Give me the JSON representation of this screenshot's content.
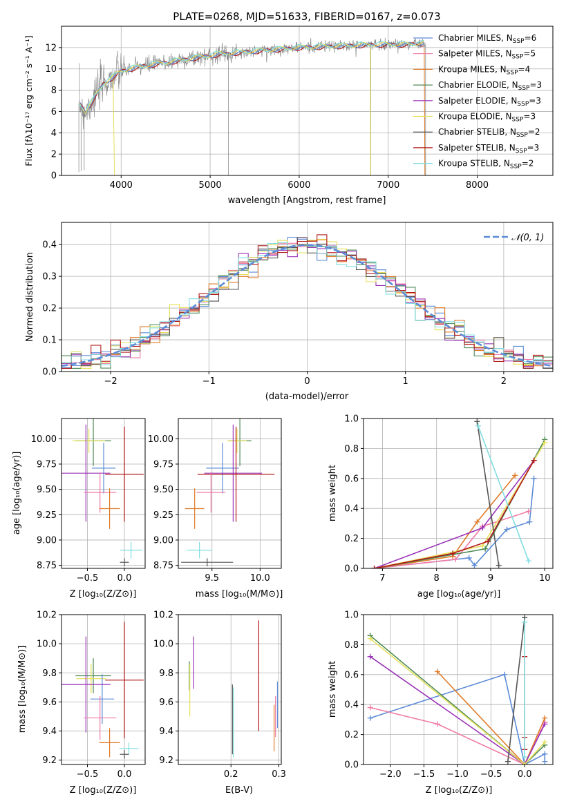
{
  "figure_title": "PLATE=0268, MJD=51633, FIBERID=0167, z=0.073",
  "colors": {
    "chabrier_miles": "#5b8bd6",
    "salpeter_miles": "#f07aa6",
    "kroupa_miles": "#e07b28",
    "chabrier_elodie": "#4f8a55",
    "salpeter_elodie": "#9a32b8",
    "kroupa_elodie": "#e6e05a",
    "chabrier_stelib": "#555555",
    "salpeter_stelib": "#b21818",
    "kroupa_stelib": "#7fdde0",
    "data": "#8a8a8a",
    "normal": "#5b8bd6"
  },
  "chart_data": [
    {
      "type": "line",
      "id": "spectrum",
      "title": "PLATE=0268, MJD=51633, FIBERID=0167, z=0.073",
      "xlabel": "wavelength [Angstrom, rest frame]",
      "ylabel": "Flux [fλ10⁻¹⁷ erg cm⁻² s⁻¹ A⁻¹]",
      "xlim": [
        3330,
        8850
      ],
      "ylim": [
        0,
        14
      ],
      "xticks": [
        4000,
        5000,
        6000,
        7000,
        8000
      ],
      "yticks": [
        0,
        2,
        4,
        6,
        8,
        10,
        12
      ],
      "legend_position": "right",
      "legend": [
        {
          "label": "Chabrier MILES, N_SSP=6",
          "key": "chabrier_miles"
        },
        {
          "label": "Salpeter MILES, N_SSP=5",
          "key": "salpeter_miles"
        },
        {
          "label": "Kroupa MILES, N_SSP=4",
          "key": "kroupa_miles"
        },
        {
          "label": "Chabrier ELODIE, N_SSP=3",
          "key": "chabrier_elodie"
        },
        {
          "label": "Salpeter ELODIE, N_SSP=3",
          "key": "salpeter_elodie"
        },
        {
          "label": "Kroupa ELODIE, N_SSP=3",
          "key": "kroupa_elodie"
        },
        {
          "label": "Chabrier STELIB, N_SSP=2",
          "key": "chabrier_stelib"
        },
        {
          "label": "Salpeter STELIB, N_SSP=3",
          "key": "salpeter_stelib"
        },
        {
          "label": "Kroupa STELIB, N_SSP=2",
          "key": "kroupa_stelib"
        }
      ],
      "continuum": [
        [
          3530,
          6.8
        ],
        [
          3600,
          6.0
        ],
        [
          3700,
          7.3
        ],
        [
          3800,
          8.6
        ],
        [
          3900,
          9.2
        ],
        [
          4000,
          9.8
        ],
        [
          4200,
          10.2
        ],
        [
          4500,
          10.6
        ],
        [
          4800,
          11.0
        ],
        [
          5100,
          11.4
        ],
        [
          5400,
          11.6
        ],
        [
          5700,
          11.8
        ],
        [
          6000,
          12.0
        ],
        [
          6300,
          12.1
        ],
        [
          6600,
          12.2
        ],
        [
          6900,
          12.3
        ],
        [
          7200,
          12.3
        ],
        [
          7400,
          12.4
        ]
      ],
      "spikes": [
        [
          3525,
          0.3
        ],
        [
          3550,
          0.4
        ],
        [
          3585,
          0.5
        ],
        [
          5205,
          0
        ],
        [
          6805,
          0
        ],
        [
          7420,
          0
        ]
      ]
    },
    {
      "type": "bar",
      "id": "residual_hist",
      "xlabel": "(data-model)/error",
      "ylabel": "Normed distribution",
      "xlim": [
        -2.5,
        2.5
      ],
      "ylim": [
        0,
        0.47
      ],
      "xticks": [
        -2,
        -1,
        0,
        1,
        2
      ],
      "yticks": [
        0.0,
        0.1,
        0.2,
        0.3,
        0.4
      ],
      "bin_width": 0.1,
      "legend": [
        {
          "label": "𝒩(0, 1)",
          "key": "normal"
        }
      ]
    },
    {
      "type": "scatter",
      "id": "age_vs_Z",
      "xlabel": "Z [log₁₀(Z/Z⊙)]",
      "ylabel": "age  [log₁₀(age/yr)]",
      "xlim": [
        -0.85,
        0.28
      ],
      "ylim": [
        8.72,
        10.2
      ],
      "xticks": [
        -0.5,
        0.0
      ],
      "yticks": [
        8.75,
        9.0,
        9.25,
        9.5,
        9.75,
        10.0
      ],
      "points": [
        {
          "key": "chabrier_elodie",
          "x": -0.42,
          "xerr": 0.24,
          "y": 9.98,
          "yerr": 0.25
        },
        {
          "key": "kroupa_elodie",
          "x": -0.48,
          "xerr": 0.22,
          "y": 9.98,
          "yerr": 0.12
        },
        {
          "key": "chabrier_miles",
          "x": -0.28,
          "xerr": 0.16,
          "y": 9.71,
          "yerr": 0.25
        },
        {
          "key": "salpeter_elodie",
          "x": -0.52,
          "xerr": 0.33,
          "y": 9.66,
          "yerr": 0.48
        },
        {
          "key": "salpeter_stelib",
          "x": 0.0,
          "xerr": 0.26,
          "y": 9.65,
          "yerr": 0.47
        },
        {
          "key": "salpeter_miles",
          "x": -0.33,
          "xerr": 0.22,
          "y": 9.47,
          "yerr": 0.2
        },
        {
          "key": "kroupa_miles",
          "x": -0.2,
          "xerr": 0.14,
          "y": 9.31,
          "yerr": 0.2
        },
        {
          "key": "kroupa_stelib",
          "x": 0.09,
          "xerr": 0.15,
          "y": 8.9,
          "yerr": 0.08
        },
        {
          "key": "chabrier_stelib",
          "x": 0.0,
          "xerr": 0.06,
          "y": 8.78,
          "yerr": 0.04
        }
      ]
    },
    {
      "type": "scatter",
      "id": "age_vs_mass",
      "xlabel": "mass [log₁₀(M/M⊙)]",
      "ylabel": "",
      "xlim": [
        9.15,
        10.22
      ],
      "ylim": [
        8.72,
        10.2
      ],
      "xticks": [
        9.5,
        10.0
      ],
      "yticks": [
        8.75,
        9.0,
        9.25,
        9.5,
        9.75,
        10.0
      ],
      "points": [
        {
          "key": "chabrier_elodie",
          "x": 9.79,
          "xerr": 0.12,
          "y": 9.98,
          "yerr": 0.25
        },
        {
          "key": "kroupa_elodie",
          "x": 9.76,
          "xerr": 0.1,
          "y": 9.98,
          "yerr": 0.12
        },
        {
          "key": "chabrier_miles",
          "x": 9.61,
          "xerr": 0.17,
          "y": 9.71,
          "yerr": 0.25
        },
        {
          "key": "salpeter_elodie",
          "x": 9.72,
          "xerr": 0.3,
          "y": 9.66,
          "yerr": 0.48
        },
        {
          "key": "salpeter_stelib",
          "x": 9.75,
          "xerr": 0.4,
          "y": 9.65,
          "yerr": 0.47
        },
        {
          "key": "salpeter_miles",
          "x": 9.49,
          "xerr": 0.15,
          "y": 9.47,
          "yerr": 0.2
        },
        {
          "key": "kroupa_miles",
          "x": 9.32,
          "xerr": 0.1,
          "y": 9.31,
          "yerr": 0.2
        },
        {
          "key": "kroupa_stelib",
          "x": 9.37,
          "xerr": 0.13,
          "y": 8.9,
          "yerr": 0.08
        },
        {
          "key": "chabrier_stelib",
          "x": 9.45,
          "xerr": 0.27,
          "y": 8.78,
          "yerr": 0.04
        }
      ]
    },
    {
      "type": "line",
      "id": "weight_vs_age",
      "xlabel": "age  [log₁₀(age/yr)]",
      "ylabel": "mass weight",
      "xlim": [
        6.65,
        10.15
      ],
      "ylim": [
        0,
        1
      ],
      "xticks": [
        7,
        8,
        9,
        10
      ],
      "yticks": [
        0.0,
        0.2,
        0.4,
        0.6,
        0.8,
        1.0
      ],
      "series": [
        {
          "key": "chabrier_miles",
          "x": [
            6.85,
            8.6,
            8.7,
            9.3,
            9.72,
            9.8
          ],
          "y": [
            0.0,
            0.07,
            0.02,
            0.26,
            0.31,
            0.6
          ]
        },
        {
          "key": "salpeter_miles",
          "x": [
            6.85,
            8.35,
            8.85,
            9.7
          ],
          "y": [
            0.0,
            0.06,
            0.28,
            0.38
          ]
        },
        {
          "key": "kroupa_miles",
          "x": [
            6.85,
            8.3,
            8.75,
            9.45
          ],
          "y": [
            0.0,
            0.08,
            0.31,
            0.62
          ]
        },
        {
          "key": "chabrier_elodie",
          "x": [
            6.85,
            8.9,
            10.0
          ],
          "y": [
            0.0,
            0.13,
            0.86
          ]
        },
        {
          "key": "salpeter_elodie",
          "x": [
            6.85,
            8.85,
            9.8
          ],
          "y": [
            0.0,
            0.27,
            0.72
          ]
        },
        {
          "key": "kroupa_elodie",
          "x": [
            6.85,
            8.85,
            10.0
          ],
          "y": [
            0.0,
            0.15,
            0.84
          ]
        },
        {
          "key": "chabrier_stelib",
          "x": [
            8.75,
            9.15
          ],
          "y": [
            0.98,
            0.02
          ]
        },
        {
          "key": "salpeter_stelib",
          "x": [
            6.85,
            8.3,
            8.95,
            9.8
          ],
          "y": [
            0.0,
            0.1,
            0.18,
            0.72
          ]
        },
        {
          "key": "kroupa_stelib",
          "x": [
            8.77,
            9.7
          ],
          "y": [
            0.95,
            0.05
          ]
        }
      ]
    },
    {
      "type": "scatter",
      "id": "mass_vs_Z",
      "xlabel": "Z [log₁₀(Z/Z⊙)]",
      "ylabel": "mass [log₁₀(M/M⊙)]",
      "xlim": [
        -0.85,
        0.28
      ],
      "ylim": [
        9.17,
        10.2
      ],
      "xticks": [
        -0.5,
        0.0
      ],
      "yticks": [
        9.2,
        9.4,
        9.6,
        9.8,
        10.0,
        10.2
      ],
      "points": [
        {
          "key": "chabrier_elodie",
          "x": -0.42,
          "xerr": 0.24,
          "y": 9.78,
          "yerr": 0.12
        },
        {
          "key": "kroupa_elodie",
          "x": -0.45,
          "xerr": 0.2,
          "y": 9.76,
          "yerr": 0.1
        },
        {
          "key": "chabrier_miles",
          "x": -0.3,
          "xerr": 0.16,
          "y": 9.62,
          "yerr": 0.17
        },
        {
          "key": "salpeter_elodie",
          "x": -0.52,
          "xerr": 0.33,
          "y": 9.72,
          "yerr": 0.33
        },
        {
          "key": "salpeter_stelib",
          "x": 0.0,
          "xerr": 0.26,
          "y": 9.75,
          "yerr": 0.4
        },
        {
          "key": "salpeter_miles",
          "x": -0.33,
          "xerr": 0.22,
          "y": 9.49,
          "yerr": 0.15
        },
        {
          "key": "kroupa_miles",
          "x": -0.2,
          "xerr": 0.14,
          "y": 9.32,
          "yerr": 0.1
        },
        {
          "key": "kroupa_stelib",
          "x": 0.06,
          "xerr": 0.13,
          "y": 9.28,
          "yerr": 0.04
        },
        {
          "key": "chabrier_stelib",
          "x": 0.0,
          "xerr": 0.06,
          "y": 9.24,
          "yerr": 0.03
        }
      ]
    },
    {
      "type": "scatter",
      "id": "mass_vs_ebv",
      "xlabel": "E(B-V)",
      "ylabel": "",
      "xlim": [
        0.09,
        0.305
      ],
      "ylim": [
        9.17,
        10.2
      ],
      "xticks": [
        0.2,
        0.3
      ],
      "yticks": [
        9.2,
        9.4,
        9.6,
        9.8,
        10.0,
        10.2
      ],
      "points": [
        {
          "key": "chabrier_elodie",
          "x": 0.113,
          "y": 9.78,
          "yerr": 0.1
        },
        {
          "key": "kroupa_elodie",
          "x": 0.114,
          "y": 9.68,
          "yerr": 0.18
        },
        {
          "key": "salpeter_elodie",
          "x": 0.122,
          "y": 9.87,
          "yerr": 0.18
        },
        {
          "key": "chabrier_stelib",
          "x": 0.203,
          "y": 9.48,
          "yerr": 0.24
        },
        {
          "key": "kroupa_stelib",
          "x": 0.205,
          "y": 9.46,
          "yerr": 0.24
        },
        {
          "key": "salpeter_stelib",
          "x": 0.258,
          "y": 9.78,
          "yerr": 0.38
        },
        {
          "key": "kroupa_miles",
          "x": 0.29,
          "y": 9.42,
          "yerr": 0.16
        },
        {
          "key": "salpeter_miles",
          "x": 0.293,
          "y": 9.5,
          "yerr": 0.14
        },
        {
          "key": "chabrier_miles",
          "x": 0.297,
          "y": 9.58,
          "yerr": 0.16
        }
      ]
    },
    {
      "type": "line",
      "id": "weight_vs_Z",
      "xlabel": "Z [log₁₀(Z/Z⊙)]",
      "ylabel": "mass weight",
      "xlim": [
        -2.4,
        0.42
      ],
      "ylim": [
        0,
        1
      ],
      "xticks": [
        -2.0,
        -1.5,
        -1.0,
        -0.5,
        0.0
      ],
      "yticks": [
        0.0,
        0.2,
        0.4,
        0.6,
        0.8,
        1.0
      ],
      "series": [
        {
          "key": "chabrier_miles",
          "x": [
            -2.3,
            -0.3,
            0.0,
            0.3,
            0.3
          ],
          "y": [
            0.31,
            0.6,
            0.0,
            0.07,
            0.02
          ]
        },
        {
          "key": "salpeter_miles",
          "x": [
            -2.3,
            -1.3,
            0.0,
            0.3
          ],
          "y": [
            0.38,
            0.27,
            0.0,
            0.28
          ]
        },
        {
          "key": "kroupa_miles",
          "x": [
            -1.3,
            0.0,
            0.3
          ],
          "y": [
            0.62,
            0.0,
            0.31
          ]
        },
        {
          "key": "chabrier_elodie",
          "x": [
            -2.3,
            0.0,
            0.3
          ],
          "y": [
            0.86,
            0.0,
            0.13
          ]
        },
        {
          "key": "salpeter_elodie",
          "x": [
            -2.3,
            0.0,
            0.3
          ],
          "y": [
            0.72,
            0.0,
            0.27
          ]
        },
        {
          "key": "kroupa_elodie",
          "x": [
            -2.3,
            0.0,
            0.3
          ],
          "y": [
            0.84,
            0.0,
            0.15
          ]
        },
        {
          "key": "chabrier_stelib",
          "x": [
            -0.25,
            0.0
          ],
          "y": [
            0.02,
            0.98
          ]
        },
        {
          "key": "salpeter_stelib",
          "x": [
            0.0,
            0.0,
            0.0
          ],
          "y": [
            0.1,
            0.72,
            0.18
          ]
        },
        {
          "key": "kroupa_stelib",
          "x": [
            0.0,
            0.0
          ],
          "y": [
            0.05,
            0.95
          ]
        }
      ]
    }
  ]
}
